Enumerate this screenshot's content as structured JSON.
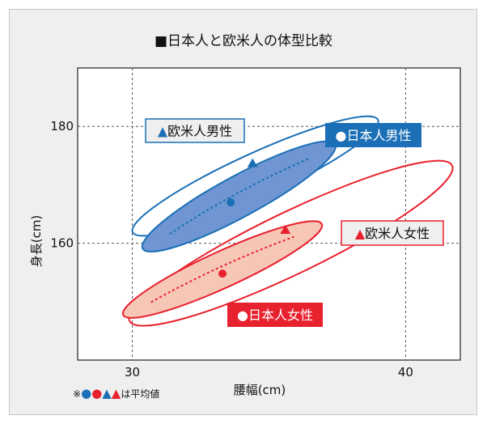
{
  "colors": {
    "blue": "#1a6fb6",
    "blue_fill": "#6f96d2",
    "red": "#e8212e",
    "red_fill": "#f7c7b6",
    "panel_bg": "#efefef",
    "plot_bg": "#ffffff"
  },
  "chart_data": {
    "type": "scatter",
    "title": "■日本人と欧米人の体型比較",
    "xlabel": "腰幅(cm)",
    "ylabel": "身長(cm)",
    "xlim": [
      28,
      42
    ],
    "ylim": [
      140,
      190
    ],
    "x_ticks": [
      30,
      40
    ],
    "x_tick_labels": [
      "30",
      "40"
    ],
    "y_ticks": [
      160,
      180
    ],
    "y_tick_labels": [
      "160",
      "180"
    ],
    "grid": "dashed at ticks",
    "note": "※●●▲▲は平均値",
    "series": [
      {
        "name": "▲欧米人男性",
        "marker": "triangle",
        "color": "#1a6fb6",
        "filled_region": false,
        "mean": {
          "x": 34.4,
          "y": 173.7
        },
        "ellipse": {
          "cx": 34.5,
          "cy": 171.5,
          "x_extent": [
            30.3,
            38.7
          ],
          "y_extent": [
            161.0,
            183.5
          ]
        }
      },
      {
        "name": "●日本人男性",
        "marker": "circle",
        "color": "#1a6fb6",
        "filled_region": true,
        "mean": {
          "x": 33.6,
          "y": 167.0
        },
        "ellipse": {
          "cx": 33.9,
          "cy": 168.0,
          "x_extent": [
            30.6,
            37.1
          ],
          "y_extent": [
            157.8,
            178.4
          ]
        }
      },
      {
        "name": "▲欧米人女性",
        "marker": "triangle",
        "color": "#e8212e",
        "filled_region": false,
        "mean": {
          "x": 35.6,
          "y": 162.3
        },
        "ellipse": {
          "cx": 35.8,
          "cy": 160.0,
          "x_extent": [
            30.1,
            41.1
          ],
          "y_extent": [
            144.3,
            175.3
          ]
        }
      },
      {
        "name": "●日本人女性",
        "marker": "circle",
        "color": "#e8212e",
        "filled_region": true,
        "mean": {
          "x": 33.3,
          "y": 154.8
        },
        "ellipse": {
          "cx": 33.3,
          "cy": 155.5,
          "x_extent": [
            30.1,
            36.9
          ],
          "y_extent": [
            147.0,
            165.2
          ]
        }
      }
    ]
  }
}
